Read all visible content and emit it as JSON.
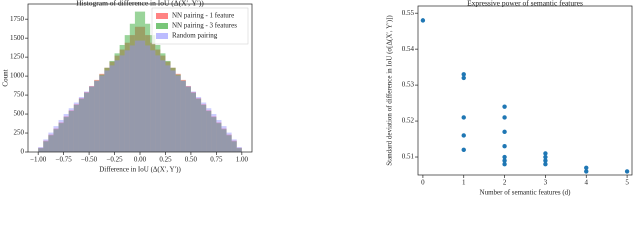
{
  "chart_data": [
    {
      "type": "histogram",
      "title": "Histogram of difference in IoU (Δ(X′, Y′))",
      "x_label": "Difference in IoU (Δ(X′, Y′))",
      "y_label": "Count",
      "bins": [
        -1.0,
        -0.95,
        -0.9,
        -0.85,
        -0.8,
        -0.75,
        -0.7,
        -0.65,
        -0.6,
        -0.55,
        -0.5,
        -0.45,
        -0.4,
        -0.35,
        -0.3,
        -0.25,
        -0.2,
        -0.15,
        -0.1,
        -0.05,
        0.0,
        0.05,
        0.1,
        0.15,
        0.2,
        0.25,
        0.3,
        0.35,
        0.4,
        0.45,
        0.5,
        0.55,
        0.6,
        0.65,
        0.7,
        0.75,
        0.8,
        0.85,
        0.9,
        0.95,
        1.0
      ],
      "series": [
        {
          "name": "NN pairing - 1 feature",
          "color": "#ff3030",
          "values": [
            55,
            150,
            230,
            310,
            390,
            470,
            550,
            630,
            710,
            790,
            870,
            950,
            1030,
            1110,
            1190,
            1270,
            1350,
            1440,
            1540,
            1650,
            1650,
            1540,
            1440,
            1350,
            1270,
            1190,
            1110,
            1030,
            950,
            870,
            790,
            710,
            630,
            550,
            470,
            390,
            310,
            230,
            150,
            55
          ]
        },
        {
          "name": "NN pairing - 3 features",
          "color": "#20a020",
          "values": [
            50,
            140,
            220,
            300,
            380,
            460,
            540,
            620,
            700,
            780,
            860,
            940,
            1020,
            1110,
            1200,
            1300,
            1410,
            1540,
            1690,
            1850,
            1850,
            1690,
            1540,
            1410,
            1300,
            1200,
            1110,
            1020,
            940,
            860,
            780,
            700,
            620,
            540,
            460,
            380,
            300,
            220,
            140,
            50
          ]
        },
        {
          "name": "Random pairing",
          "color": "#9090ff",
          "values": [
            65,
            166,
            256,
            341,
            422,
            501,
            577,
            652,
            725,
            797,
            867,
            937,
            1006,
            1074,
            1141,
            1208,
            1273,
            1339,
            1404,
            1468,
            1468,
            1404,
            1339,
            1273,
            1208,
            1141,
            1074,
            1006,
            937,
            867,
            797,
            725,
            652,
            577,
            501,
            422,
            341,
            256,
            166,
            65
          ]
        }
      ],
      "xlim": [
        -1.1,
        1.1
      ],
      "ylim": [
        0,
        1950
      ],
      "xticks": [
        {
          "value": -1,
          "label": "−1.00"
        },
        {
          "value": -0.75,
          "label": "−0.75"
        },
        {
          "value": -0.5,
          "label": "−0.50"
        },
        {
          "value": -0.25,
          "label": "−0.25"
        },
        {
          "value": 0,
          "label": "0.00"
        },
        {
          "value": 0.25,
          "label": "0.25"
        },
        {
          "value": 0.5,
          "label": "0.50"
        },
        {
          "value": 0.75,
          "label": "0.75"
        },
        {
          "value": 1,
          "label": "1.00"
        }
      ],
      "yticks": [
        0,
        250,
        500,
        750,
        1000,
        1250,
        1500,
        1750
      ],
      "legend": "upper right"
    },
    {
      "type": "scatter",
      "title": "Expressive power of semantic features",
      "x_label": "Number of semantic features (d)",
      "y_label": "Standard deviation of difference in IoU (σ[Δ(X′, Y′)])",
      "color": "#1f77b4",
      "x": [
        0,
        1,
        1,
        1,
        1,
        1,
        2,
        2,
        2,
        2,
        2,
        2,
        2,
        3,
        3,
        3,
        3,
        4,
        4,
        5
      ],
      "values": [
        0.548,
        0.533,
        0.532,
        0.521,
        0.516,
        0.512,
        0.524,
        0.521,
        0.517,
        0.513,
        0.51,
        0.509,
        0.508,
        0.511,
        0.51,
        0.509,
        0.508,
        0.507,
        0.506,
        0.506
      ],
      "xlim": [
        -0.12,
        5.12
      ],
      "ylim": [
        0.505,
        0.552
      ],
      "xticks": [
        0,
        1,
        2,
        3,
        4,
        5
      ],
      "yticks": [
        0.51,
        0.52,
        0.53,
        0.54,
        0.55
      ]
    }
  ]
}
